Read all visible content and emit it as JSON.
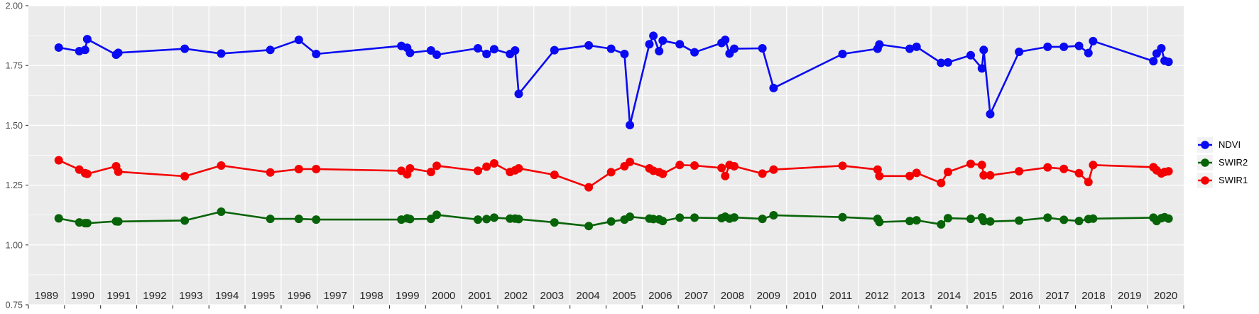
{
  "chart_data": {
    "type": "line",
    "title": "",
    "xlabel": "",
    "ylabel": "",
    "xlim": [
      1989,
      2021
    ],
    "ylim": [
      0.75,
      2.0
    ],
    "y_tick_labels": [
      "2.00",
      "1.75",
      "1.50",
      "1.25",
      "1.00",
      "0.75"
    ],
    "y_minor_ticks": [
      1.875,
      1.625,
      1.375,
      1.125,
      0.875
    ],
    "x_label_years": [
      1989,
      1990,
      1991,
      1992,
      1993,
      1994,
      1995,
      1996,
      1997,
      1998,
      1999,
      2000,
      2001,
      2002,
      2003,
      2004,
      2005,
      2006,
      2007,
      2008,
      2009,
      2010,
      2011,
      2012,
      2013,
      2014,
      2015,
      2016,
      2017,
      2018,
      2019,
      2020
    ],
    "grid": "white major/minor on gray panel",
    "legend_position": "right-center",
    "x": [
      1989.84,
      1990.41,
      1990.57,
      1990.63,
      1991.43,
      1991.49,
      1993.33,
      1994.34,
      1995.7,
      1996.49,
      1996.97,
      1999.33,
      1999.49,
      1999.57,
      2000.15,
      2000.31,
      2001.45,
      2001.69,
      2001.9,
      2002.34,
      2002.48,
      2002.58,
      2003.57,
      2004.52,
      2005.14,
      2005.51,
      2005.66,
      2006.2,
      2006.31,
      2006.47,
      2006.57,
      2007.04,
      2007.45,
      2008.2,
      2008.3,
      2008.42,
      2008.55,
      2009.33,
      2009.64,
      2011.55,
      2012.52,
      2012.57,
      2013.41,
      2013.6,
      2014.28,
      2014.47,
      2015.1,
      2015.41,
      2015.46,
      2015.64,
      2016.44,
      2017.23,
      2017.68,
      2018.1,
      2018.36,
      2018.49,
      2020.16,
      2020.25,
      2020.38,
      2020.47,
      2020.58
    ],
    "series": [
      {
        "name": "NDVI",
        "color": "#0909F2",
        "values": [
          1.825,
          1.81,
          1.815,
          1.86,
          1.795,
          1.803,
          1.82,
          1.8,
          1.815,
          1.857,
          1.798,
          1.832,
          1.824,
          1.803,
          1.813,
          1.795,
          1.822,
          1.798,
          1.818,
          1.798,
          1.813,
          1.631,
          1.814,
          1.834,
          1.82,
          1.798,
          1.501,
          1.839,
          1.874,
          1.81,
          1.854,
          1.839,
          1.805,
          1.844,
          1.857,
          1.8,
          1.82,
          1.822,
          1.656,
          1.798,
          1.82,
          1.838,
          1.82,
          1.828,
          1.761,
          1.763,
          1.793,
          1.738,
          1.815,
          1.547,
          1.807,
          1.828,
          1.828,
          1.832,
          1.802,
          1.852,
          1.768,
          1.8,
          1.822,
          1.77,
          1.765
        ]
      },
      {
        "name": "SWIR2",
        "color": "#076307",
        "values": [
          1.111,
          1.094,
          1.091,
          1.091,
          1.099,
          1.098,
          1.102,
          1.139,
          1.109,
          1.109,
          1.106,
          1.106,
          1.111,
          1.108,
          1.109,
          1.126,
          1.106,
          1.108,
          1.114,
          1.11,
          1.11,
          1.108,
          1.094,
          1.079,
          1.098,
          1.106,
          1.118,
          1.11,
          1.108,
          1.107,
          1.1,
          1.114,
          1.114,
          1.112,
          1.118,
          1.11,
          1.115,
          1.109,
          1.124,
          1.116,
          1.109,
          1.096,
          1.1,
          1.103,
          1.086,
          1.112,
          1.109,
          1.115,
          1.1,
          1.098,
          1.102,
          1.114,
          1.105,
          1.1,
          1.108,
          1.11,
          1.114,
          1.1,
          1.112,
          1.116,
          1.11
        ]
      },
      {
        "name": "SWIR1",
        "color": "#F40000",
        "values": [
          1.354,
          1.315,
          1.3,
          1.297,
          1.329,
          1.306,
          1.287,
          1.332,
          1.303,
          1.317,
          1.317,
          1.31,
          1.295,
          1.32,
          1.305,
          1.331,
          1.31,
          1.327,
          1.341,
          1.305,
          1.312,
          1.32,
          1.293,
          1.241,
          1.304,
          1.329,
          1.347,
          1.32,
          1.31,
          1.304,
          1.297,
          1.334,
          1.332,
          1.322,
          1.288,
          1.334,
          1.329,
          1.298,
          1.315,
          1.331,
          1.315,
          1.288,
          1.288,
          1.301,
          1.259,
          1.305,
          1.339,
          1.334,
          1.291,
          1.291,
          1.308,
          1.324,
          1.318,
          1.3,
          1.263,
          1.334,
          1.325,
          1.312,
          1.299,
          1.305,
          1.308
        ]
      }
    ]
  },
  "panel": {
    "background": "#EBEBEB",
    "grid_color": "#FFFFFF",
    "y_axis_text_color": "#4D4D4D",
    "x_axis_text_color": "#262626",
    "tick_color": "#333333",
    "legend_key_background": "#F2F2F2"
  },
  "legend": {
    "items": [
      {
        "label": "NDVI"
      },
      {
        "label": "SWIR2"
      },
      {
        "label": "SWIR1"
      }
    ]
  }
}
